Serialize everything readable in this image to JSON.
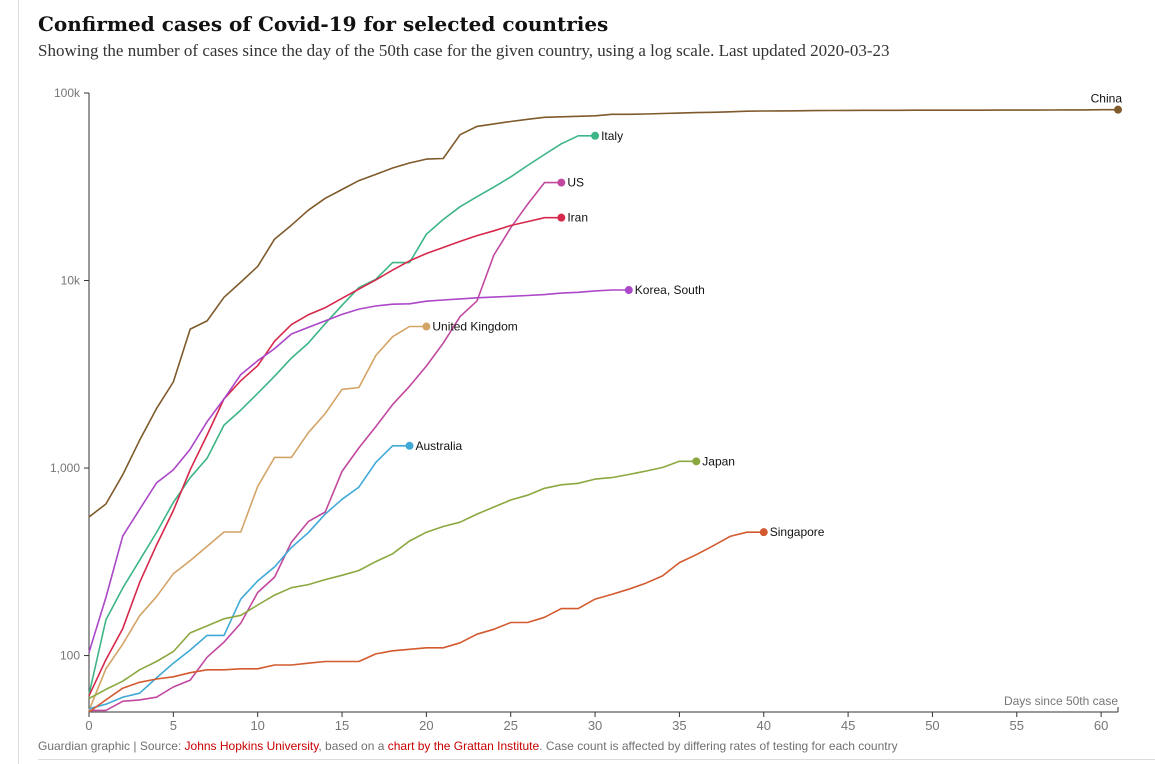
{
  "title": "Confirmed cases of Covid-19 for selected countries",
  "subtitle": "Showing the number of cases since the day of the 50th case for the given country, using a log scale. Last updated 2020-03-23",
  "footer": {
    "prefix": "Guardian graphic | Source: ",
    "source_link": "Johns Hopkins University",
    "middle": ", based on a ",
    "chart_link": "chart by the Grattan Institute",
    "suffix": ". Case count is affected by differing rates of testing for each country"
  },
  "chart_data": {
    "type": "line",
    "title": "Confirmed cases of Covid-19 for selected countries",
    "xlabel": "Days since 50th case",
    "ylabel": "",
    "yscale": "log",
    "xlim": [
      0,
      61
    ],
    "ylim": [
      50,
      100000
    ],
    "xticks": [
      0,
      5,
      10,
      15,
      20,
      25,
      30,
      35,
      40,
      45,
      50,
      55,
      60
    ],
    "yticks": [
      100,
      1000,
      10000,
      100000
    ],
    "ytick_labels": [
      "100",
      "1,000",
      "10k",
      "100k"
    ],
    "grid": false,
    "legend": "direct labels at line ends",
    "series": [
      {
        "name": "China",
        "color": "#7f5a2b",
        "x": [
          0,
          1,
          2,
          3,
          4,
          5,
          6,
          7,
          8,
          9,
          10,
          11,
          12,
          13,
          14,
          15,
          16,
          17,
          18,
          19,
          20,
          21,
          22,
          23,
          24,
          25,
          26,
          27,
          28,
          29,
          30,
          31,
          32,
          33,
          34,
          35,
          36,
          37,
          38,
          39,
          40,
          41,
          42,
          43,
          44,
          45,
          46,
          47,
          48,
          49,
          50,
          51,
          52,
          53,
          54,
          55,
          56,
          57,
          58,
          59,
          60,
          61
        ],
        "y": [
          548,
          643,
          920,
          1406,
          2075,
          2877,
          5509,
          6087,
          8141,
          9802,
          11891,
          16630,
          19716,
          23707,
          27440,
          30587,
          34110,
          36814,
          39829,
          42354,
          44386,
          44759,
          59895,
          66358,
          68413,
          70513,
          72434,
          74211,
          74619,
          75077,
          75550,
          77001,
          77022,
          77241,
          77754,
          78166,
          78600,
          78928,
          79356,
          79932,
          80136,
          80261,
          80386,
          80537,
          80690,
          80770,
          80823,
          80860,
          80887,
          80921,
          80932,
          80945,
          80977,
          81003,
          81033,
          81058,
          81102,
          81156,
          81250,
          81305,
          81435,
          81498
        ]
      },
      {
        "name": "Italy",
        "color": "#3db586",
        "x": [
          0,
          1,
          2,
          3,
          4,
          5,
          6,
          7,
          8,
          9,
          10,
          11,
          12,
          13,
          14,
          15,
          16,
          17,
          18,
          19,
          20,
          21,
          22,
          23,
          24,
          25,
          26,
          27,
          28,
          29,
          30
        ],
        "y": [
          62,
          155,
          229,
          322,
          453,
          655,
          888,
          1128,
          1694,
          2036,
          2502,
          3089,
          3858,
          4636,
          5883,
          7375,
          9172,
          10149,
          12462,
          12462,
          17660,
          21157,
          24747,
          27980,
          31506,
          35713,
          41035,
          47021,
          53578,
          59138,
          59138
        ]
      },
      {
        "name": "US",
        "color": "#c1489f",
        "x": [
          0,
          1,
          2,
          3,
          4,
          5,
          6,
          7,
          8,
          9,
          10,
          11,
          12,
          13,
          14,
          15,
          16,
          17,
          18,
          19,
          20,
          21,
          22,
          23,
          24,
          25,
          26,
          27,
          28
        ],
        "y": [
          51,
          51,
          57,
          58,
          60,
          68,
          74,
          98,
          118,
          149,
          217,
          262,
          402,
          518,
          583,
          959,
          1281,
          1663,
          2179,
          2727,
          3499,
          4632,
          6421,
          7786,
          13680,
          19101,
          25493,
          33276,
          33276
        ]
      },
      {
        "name": "Iran",
        "color": "#d6284a",
        "x": [
          0,
          1,
          2,
          3,
          4,
          5,
          6,
          7,
          8,
          9,
          10,
          11,
          12,
          13,
          14,
          15,
          16,
          17,
          18,
          19,
          20,
          21,
          22,
          23,
          24,
          25,
          26,
          27,
          28
        ],
        "y": [
          61,
          95,
          139,
          245,
          388,
          593,
          978,
          1501,
          2336,
          2922,
          3513,
          4747,
          5823,
          6566,
          7161,
          8042,
          9000,
          10075,
          11364,
          12729,
          13938,
          14991,
          16169,
          17361,
          18407,
          19644,
          20610,
          21638,
          21638
        ]
      },
      {
        "name": "Korea, South",
        "color": "#ab47c8",
        "x": [
          0,
          1,
          2,
          3,
          4,
          5,
          6,
          7,
          8,
          9,
          10,
          11,
          12,
          13,
          14,
          15,
          16,
          17,
          18,
          19,
          20,
          21,
          22,
          23,
          24,
          25,
          26,
          27,
          28,
          29,
          30,
          31,
          32
        ],
        "y": [
          104,
          204,
          433,
          602,
          833,
          977,
          1261,
          1766,
          2337,
          3150,
          3736,
          4335,
          5186,
          5621,
          6088,
          6593,
          7041,
          7314,
          7478,
          7513,
          7755,
          7869,
          7979,
          8086,
          8162,
          8236,
          8320,
          8413,
          8565,
          8652,
          8799,
          8897,
          8897
        ]
      },
      {
        "name": "United Kingdom",
        "color": "#d3a466",
        "x": [
          0,
          1,
          2,
          3,
          4,
          5,
          6,
          7,
          8,
          9,
          10,
          11,
          12,
          13,
          14,
          15,
          16,
          17,
          18,
          19,
          20
        ],
        "y": [
          51,
          85,
          115,
          163,
          206,
          273,
          321,
          382,
          456,
          456,
          798,
          1140,
          1140,
          1543,
          1950,
          2626,
          2689,
          3983,
          5018,
          5683,
          5683
        ]
      },
      {
        "name": "Australia",
        "color": "#40a9d6",
        "x": [
          0,
          1,
          2,
          3,
          4,
          5,
          6,
          7,
          8,
          9,
          10,
          11,
          12,
          13,
          14,
          15,
          16,
          17,
          18,
          19
        ],
        "y": [
          52,
          55,
          60,
          63,
          76,
          91,
          107,
          128,
          128,
          200,
          250,
          297,
          377,
          452,
          568,
          681,
          791,
          1071,
          1314,
          1314
        ]
      },
      {
        "name": "Japan",
        "color": "#8ba840",
        "x": [
          0,
          1,
          2,
          3,
          4,
          5,
          6,
          7,
          8,
          9,
          10,
          11,
          12,
          13,
          14,
          15,
          16,
          17,
          18,
          19,
          20,
          21,
          22,
          23,
          24,
          25,
          26,
          27,
          28,
          29,
          30,
          31,
          32,
          33,
          34,
          35,
          36
        ],
        "y": [
          59,
          66,
          73,
          84,
          93,
          105,
          132,
          144,
          157,
          164,
          186,
          210,
          230,
          239,
          254,
          268,
          284,
          317,
          349,
          408,
          455,
          488,
          514,
          568,
          620,
          675,
          716,
          780,
          814,
          829,
          873,
          889,
          924,
          963,
          1007,
          1086,
          1086
        ]
      },
      {
        "name": "Singapore",
        "color": "#d35a2f",
        "x": [
          0,
          1,
          2,
          3,
          4,
          5,
          6,
          7,
          8,
          9,
          10,
          11,
          12,
          13,
          14,
          15,
          16,
          17,
          18,
          19,
          20,
          21,
          22,
          23,
          24,
          25,
          26,
          27,
          28,
          29,
          30,
          31,
          32,
          33,
          34,
          35,
          36,
          37,
          38,
          39,
          40
        ],
        "y": [
          50,
          58,
          67,
          72,
          75,
          77,
          81,
          84,
          84,
          85,
          85,
          89,
          89,
          91,
          93,
          93,
          93,
          102,
          106,
          108,
          110,
          110,
          117,
          130,
          138,
          150,
          150,
          160,
          178,
          178,
          200,
          212,
          226,
          243,
          266,
          313,
          345,
          385,
          432,
          455,
          455
        ]
      }
    ]
  }
}
